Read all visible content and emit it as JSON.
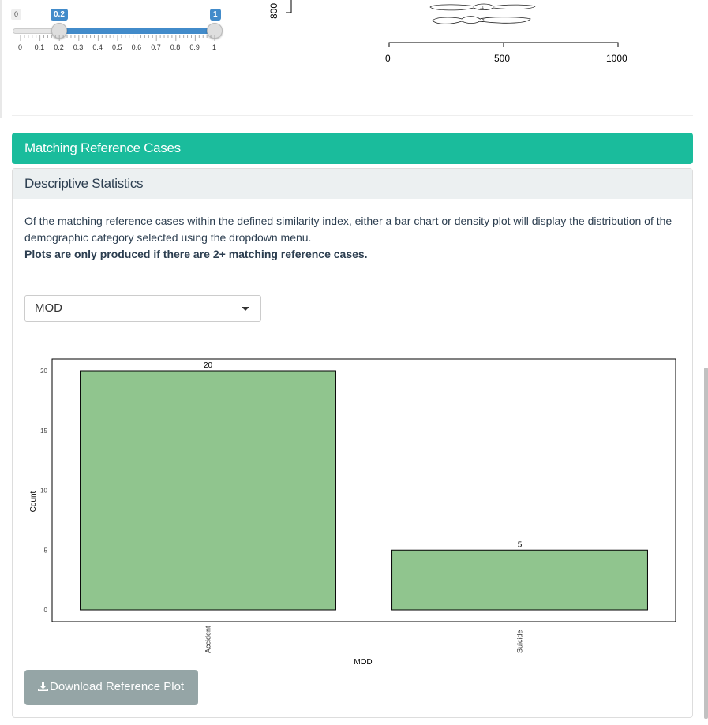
{
  "slider": {
    "min_label": "0",
    "from_label": "0.2",
    "to_label": "1",
    "ticks": [
      "0",
      "0.1",
      "0.2",
      "0.3",
      "0.4",
      "0.5",
      "0.6",
      "0.7",
      "0.8",
      "0.9",
      "1"
    ]
  },
  "top_fragment": {
    "y_tick": "800",
    "x_ticks": [
      "0",
      "500",
      "1000"
    ],
    "shape_labels": [
      "11",
      "12"
    ]
  },
  "panel": {
    "header": "Matching Reference Cases",
    "subheader": "Descriptive Statistics",
    "description": "Of the matching reference cases within the defined similarity index, either a bar chart or density plot will display the distribution of the demographic category selected using the dropdown menu.",
    "note": "Plots are only produced if there are 2+ matching reference cases.",
    "select_value": "MOD",
    "download_label": "Download Reference Plot"
  },
  "chart_data": {
    "type": "bar",
    "categories": [
      "Accident",
      "Suicide"
    ],
    "values": [
      20,
      5
    ],
    "xlabel": "MOD",
    "ylabel": "Count",
    "ylim": [
      0,
      20
    ],
    "yticks": [
      "0",
      "5",
      "10",
      "15",
      "20"
    ],
    "bar_color": "#90c58e"
  },
  "colors": {
    "accent": "#1abc9c",
    "slider": "#428bca",
    "button": "#95a5a6"
  }
}
